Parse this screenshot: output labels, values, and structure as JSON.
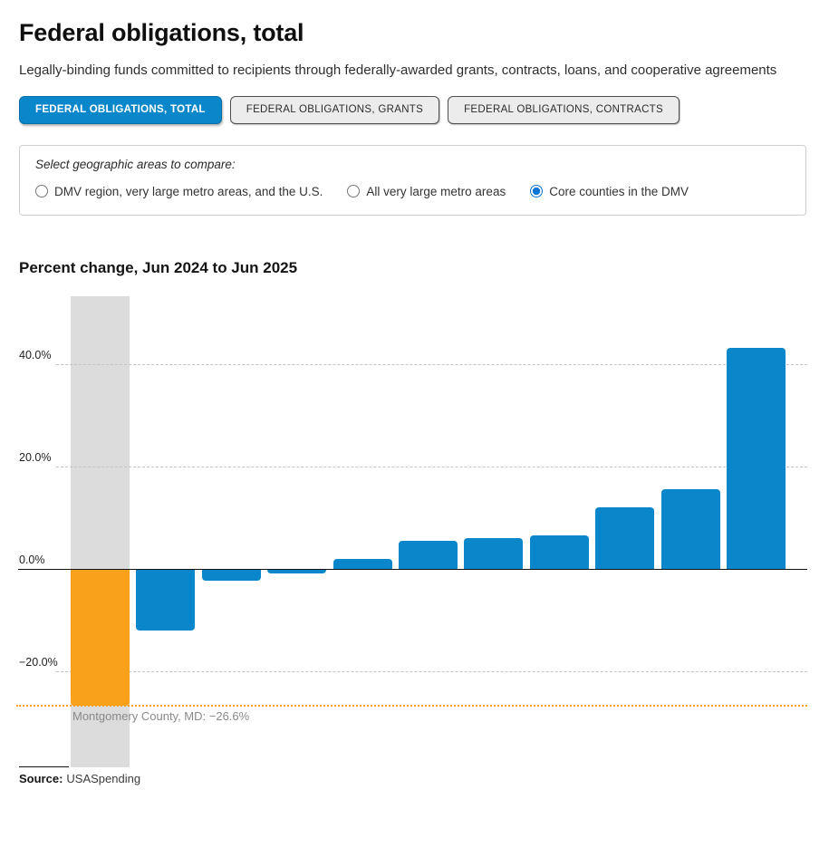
{
  "page": {
    "title": "Federal obligations, total",
    "subtitle": "Legally-binding funds committed to recipients through federally-awarded grants, contracts, loans, and cooperative agreements",
    "source_label": "Source:",
    "source_value": "USASpending"
  },
  "tabs": [
    {
      "label": "FEDERAL OBLIGATIONS, TOTAL",
      "active": true
    },
    {
      "label": "FEDERAL OBLIGATIONS, GRANTS",
      "active": false
    },
    {
      "label": "FEDERAL OBLIGATIONS, CONTRACTS",
      "active": false
    }
  ],
  "geo_selector": {
    "legend": "Select geographic areas to compare:",
    "options": [
      {
        "label": "DMV region, very large metro areas, and the U.S.",
        "selected": false
      },
      {
        "label": "All very large metro areas",
        "selected": false
      },
      {
        "label": "Core counties in the DMV",
        "selected": true
      }
    ]
  },
  "chart_data": {
    "type": "bar",
    "title": "Percent change, Jun 2024 to Jun 2025",
    "values": [
      -26.6,
      -11.8,
      -2.1,
      -0.7,
      1.8,
      5.5,
      6.0,
      6.5,
      12.0,
      15.5,
      43.1
    ],
    "highlight": {
      "index": 0,
      "label": "Montgomery County, MD",
      "value": -26.6,
      "annotation": "Montgomery County, MD: −26.6%"
    },
    "y_axis": {
      "tick_labels": [
        "40.0%",
        "20.0%",
        "0.0%",
        "−20.0%"
      ],
      "tick_values": [
        40,
        20,
        0,
        -20
      ]
    },
    "ylim": [
      -38.8,
      53.2
    ],
    "grid": "horizontal-dashed",
    "legend_position": "none",
    "bar_color": "#0a87cb",
    "highlight_bar_color": "#faa11c",
    "highlight_band_color": "#dcdcdc",
    "highlight_line_color": "#f9a01b",
    "active_tab_color": "#0a87cb"
  }
}
